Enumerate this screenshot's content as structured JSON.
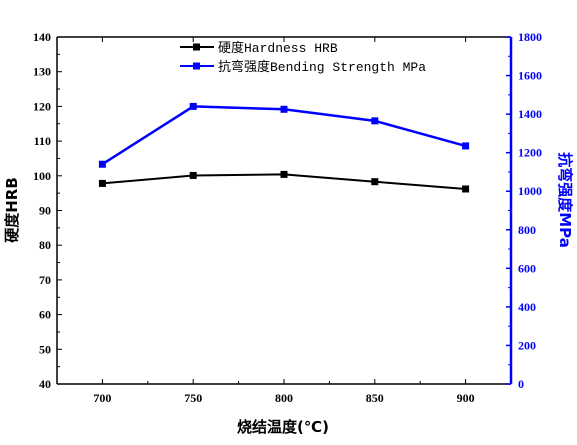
{
  "chart_data": {
    "type": "line",
    "title": "",
    "xlabel": "烧结温度(℃)",
    "ylabel_left": "硬度HRB",
    "ylabel_right": "抗弯强度MPa",
    "x": [
      700,
      750,
      800,
      850,
      900
    ],
    "xlim": [
      675,
      925
    ],
    "x_ticks": [
      "700",
      "750",
      "800",
      "850",
      "900"
    ],
    "ylim_left": [
      40,
      140
    ],
    "y_ticks_left": [
      "40",
      "50",
      "60",
      "70",
      "80",
      "90",
      "100",
      "110",
      "120",
      "130",
      "140"
    ],
    "ylim_right": [
      0,
      1800
    ],
    "y_ticks_right": [
      "0",
      "200",
      "400",
      "600",
      "800",
      "1000",
      "1200",
      "1400",
      "1600",
      "1800"
    ],
    "grid": false,
    "legend_position": "top-center",
    "series": [
      {
        "name": "硬度Hardness HRB",
        "axis": "left",
        "color": "#000000",
        "marker": "square",
        "values": [
          97.8,
          100.1,
          100.4,
          98.3,
          96.2
        ]
      },
      {
        "name": "抗弯强度Bending Strength MPa",
        "axis": "right",
        "color": "#0000ff",
        "marker": "square",
        "values": [
          1140,
          1440,
          1425,
          1365,
          1235
        ]
      }
    ],
    "colors": {
      "left_axis": "#000000",
      "right_axis": "#0000ff"
    }
  }
}
